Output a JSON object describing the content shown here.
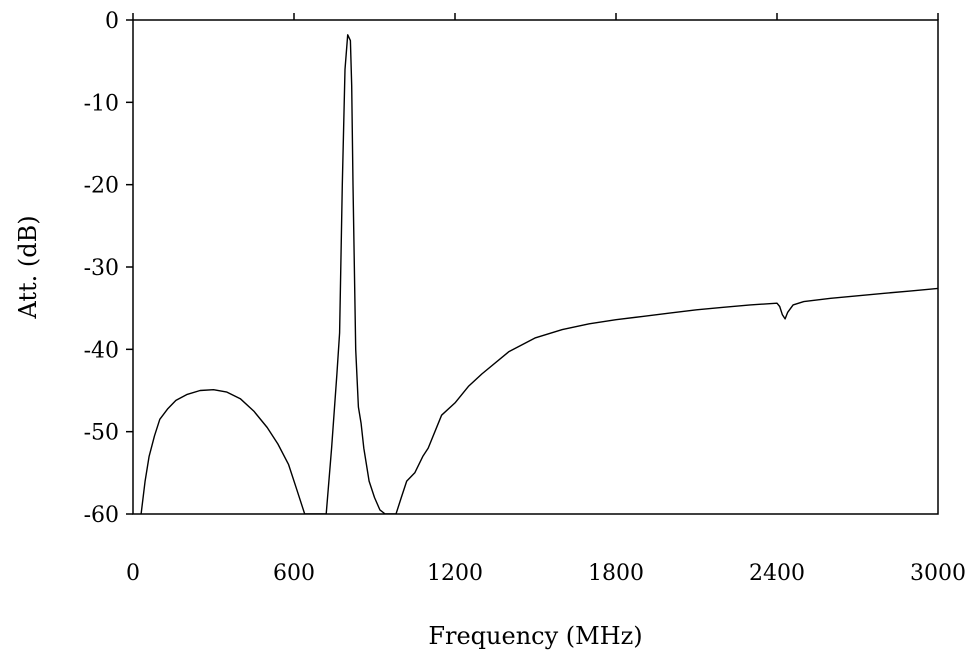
{
  "chart_data": {
    "type": "line",
    "title": "",
    "xlabel": "Frequency (MHz)",
    "ylabel": "Att. (dB)",
    "xlim": [
      0,
      3000
    ],
    "ylim": [
      -60,
      0
    ],
    "x_ticks": [
      "0",
      "600",
      "1200",
      "1800",
      "2400",
      "3000"
    ],
    "y_ticks": [
      "0",
      "-10",
      "-20",
      "-30",
      "-40",
      "-50",
      "-60"
    ],
    "grid": false,
    "legend": "none",
    "line_color": "#000000",
    "series": [
      {
        "x": [
          30,
          45,
          60,
          80,
          100,
          130,
          160,
          200,
          250,
          300,
          350,
          400,
          450,
          500,
          540,
          580,
          610,
          640,
          660,
          680,
          700,
          710,
          720,
          740,
          760,
          770,
          780,
          790,
          800,
          810,
          815,
          820,
          830,
          840,
          850,
          860,
          880,
          900,
          920,
          940,
          960,
          980,
          1000,
          1020,
          1050,
          1080,
          1100,
          1150,
          1200,
          1250,
          1300,
          1400,
          1500,
          1600,
          1700,
          1800,
          1900,
          2000,
          2100,
          2200,
          2300,
          2400,
          2410,
          2420,
          2430,
          2440,
          2460,
          2500,
          2600,
          2700,
          2800,
          2900,
          3000
        ],
        "y": [
          -60,
          -56,
          -53,
          -50.5,
          -48.5,
          -47.2,
          -46.2,
          -45.5,
          -45,
          -44.9,
          -45.2,
          -46,
          -47.5,
          -49.5,
          -51.5,
          -54,
          -57,
          -60,
          -60,
          -60,
          -60,
          -60,
          -60,
          -52,
          -43,
          -38,
          -20,
          -6,
          -1.8,
          -2.5,
          -8,
          -20,
          -40,
          -47,
          -49,
          -52,
          -56,
          -58,
          -59.5,
          -60,
          -60,
          -60,
          -58,
          -56,
          -55,
          -53,
          -52,
          -48,
          -46.5,
          -44.5,
          -43,
          -40.3,
          -38.6,
          -37.6,
          -36.9,
          -36.4,
          -36,
          -35.6,
          -35.2,
          -34.9,
          -34.6,
          -34.4,
          -34.8,
          -35.8,
          -36.3,
          -35.5,
          -34.6,
          -34.2,
          -33.8,
          -33.5,
          -33.2,
          -32.9,
          -32.6
        ]
      }
    ]
  }
}
